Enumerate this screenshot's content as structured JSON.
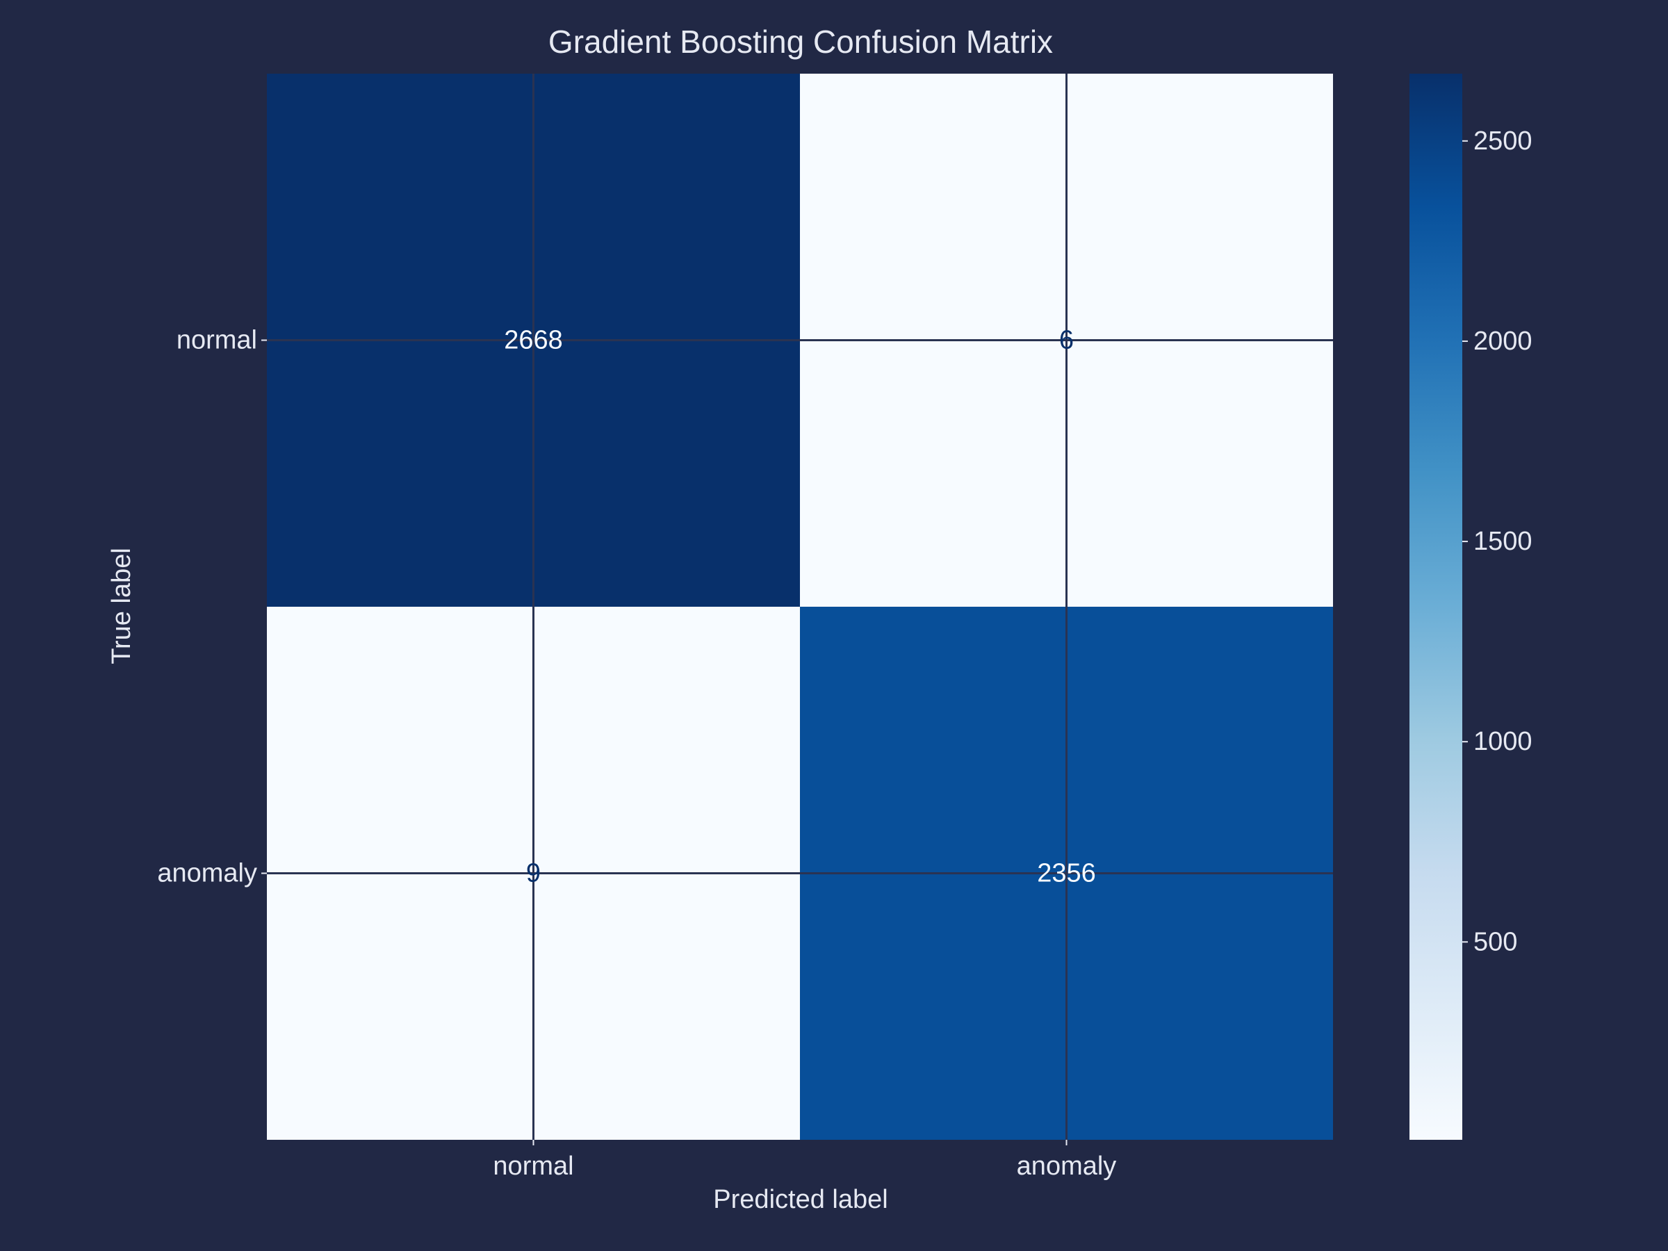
{
  "colors": {
    "background": "#212845",
    "text": "#e6e9f2",
    "grid": "#2a3352",
    "colormap": "Blues",
    "colormap_stops": [
      "#f7fbff",
      "#deebf7",
      "#c6dbef",
      "#9ecae1",
      "#6baed6",
      "#4292c6",
      "#2171b5",
      "#08519c",
      "#08306b"
    ]
  },
  "chart_data": {
    "type": "heatmap",
    "title": "Gradient Boosting Confusion Matrix",
    "xlabel": "Predicted label",
    "ylabel": "True label",
    "x_categories": [
      "normal",
      "anomaly"
    ],
    "y_categories": [
      "normal",
      "anomaly"
    ],
    "matrix": [
      [
        2668,
        6
      ],
      [
        9,
        2356
      ]
    ],
    "cell_labels": [
      [
        "2668",
        "6"
      ],
      [
        "9",
        "2356"
      ]
    ],
    "colorbar": {
      "vmin": 6,
      "vmax": 2668,
      "ticks": [
        500,
        1000,
        1500,
        2000,
        2500
      ],
      "tick_labels": [
        "500",
        "1000",
        "1500",
        "2000",
        "2500"
      ]
    },
    "grid": true
  }
}
